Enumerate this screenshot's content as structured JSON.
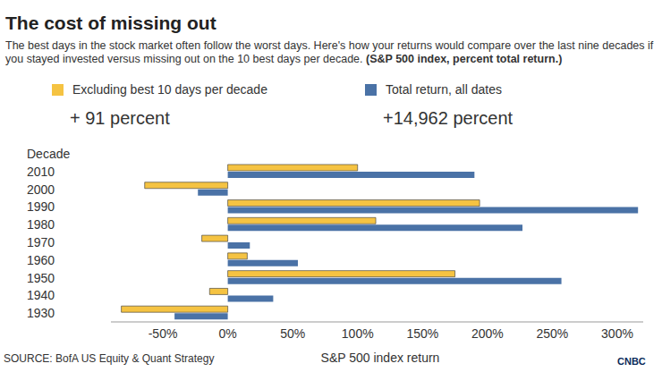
{
  "chart_data": {
    "type": "bar",
    "orientation": "horizontal",
    "title": "The cost of missing out",
    "subtitle": "The best days in the stock market often follow the worst days. Here's how your returns would compare over the last nine decades if you stayed invested versus missing out on the 10 best days per decade.",
    "note": "(S&P 500 index, percent total return.)",
    "y_label": "Decade",
    "x_label": "S&P 500 index return",
    "source": "SOURCE: BofA US Equity & Quant Strategy",
    "logo": "CNBC",
    "categories": [
      "2010",
      "2000",
      "1990",
      "1980",
      "1970",
      "1960",
      "1950",
      "1940",
      "1930"
    ],
    "series": [
      {
        "name": "Excluding best 10 days per decade",
        "color": "#f5c342",
        "values": [
          100,
          -64,
          194,
          114,
          -20,
          15,
          175,
          -14,
          -82
        ]
      },
      {
        "name": "Total return, all dates",
        "color": "#4a72a6",
        "values": [
          190,
          -23,
          316,
          227,
          17,
          54,
          257,
          35,
          -41
        ]
      }
    ],
    "annotations": [
      "+ 91 percent",
      "+14,962 percent"
    ],
    "xlim": [
      -90,
      320
    ],
    "xticks": [
      {
        "value": -50,
        "label": "-50%"
      },
      {
        "value": 0,
        "label": "0%"
      },
      {
        "value": 50,
        "label": "50%"
      },
      {
        "value": 100,
        "label": "100%"
      },
      {
        "value": 150,
        "label": "150%"
      },
      {
        "value": 200,
        "label": "200%"
      },
      {
        "value": 250,
        "label": "250%"
      },
      {
        "value": 300,
        "label": "300%"
      }
    ]
  }
}
